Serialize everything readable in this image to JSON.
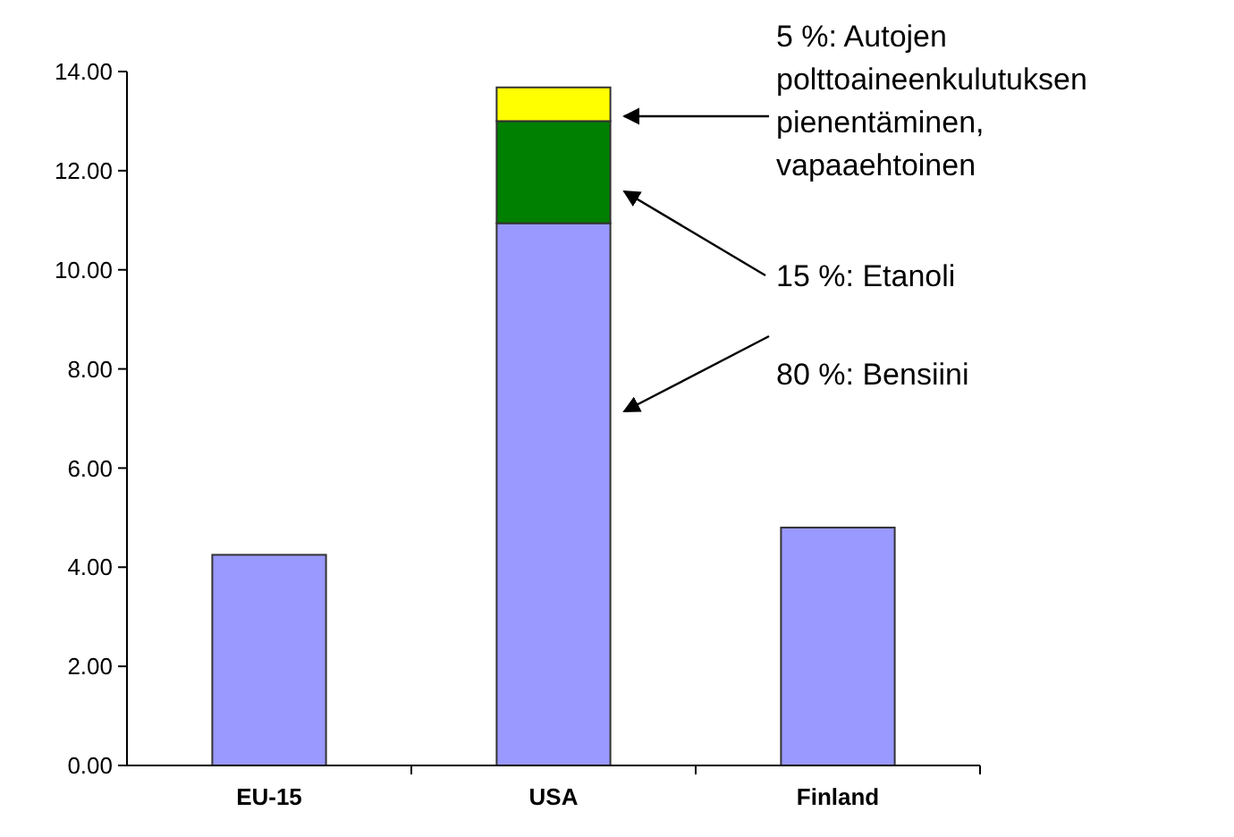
{
  "chart_data": {
    "type": "bar",
    "stacked": true,
    "categories": [
      "EU-15",
      "USA",
      "Finland"
    ],
    "series": [
      {
        "color": "#9999ff",
        "values": [
          4.25,
          10.94,
          4.8
        ]
      },
      {
        "color": "#008000",
        "values": [
          null,
          2.06,
          null
        ]
      },
      {
        "color": "#ffff00",
        "values": [
          null,
          0.68,
          null
        ]
      }
    ],
    "ylim": [
      0,
      14
    ],
    "yticks": [
      {
        "value": 0,
        "label": "0.00"
      },
      {
        "value": 2,
        "label": "2.00"
      },
      {
        "value": 4,
        "label": "4.00"
      },
      {
        "value": 6,
        "label": "6.00"
      },
      {
        "value": 8,
        "label": "8.00"
      },
      {
        "value": 10,
        "label": "10.00"
      },
      {
        "value": 12,
        "label": "12.00"
      },
      {
        "value": 14,
        "label": "14.00"
      }
    ],
    "grid": false,
    "annotations": [
      "5 %: Autojen\npolttoaineenkulutuksen\npienentäminen,\nvapaaehtoinen",
      "15 %: Etanoli",
      "80 %: Bensiini"
    ]
  }
}
